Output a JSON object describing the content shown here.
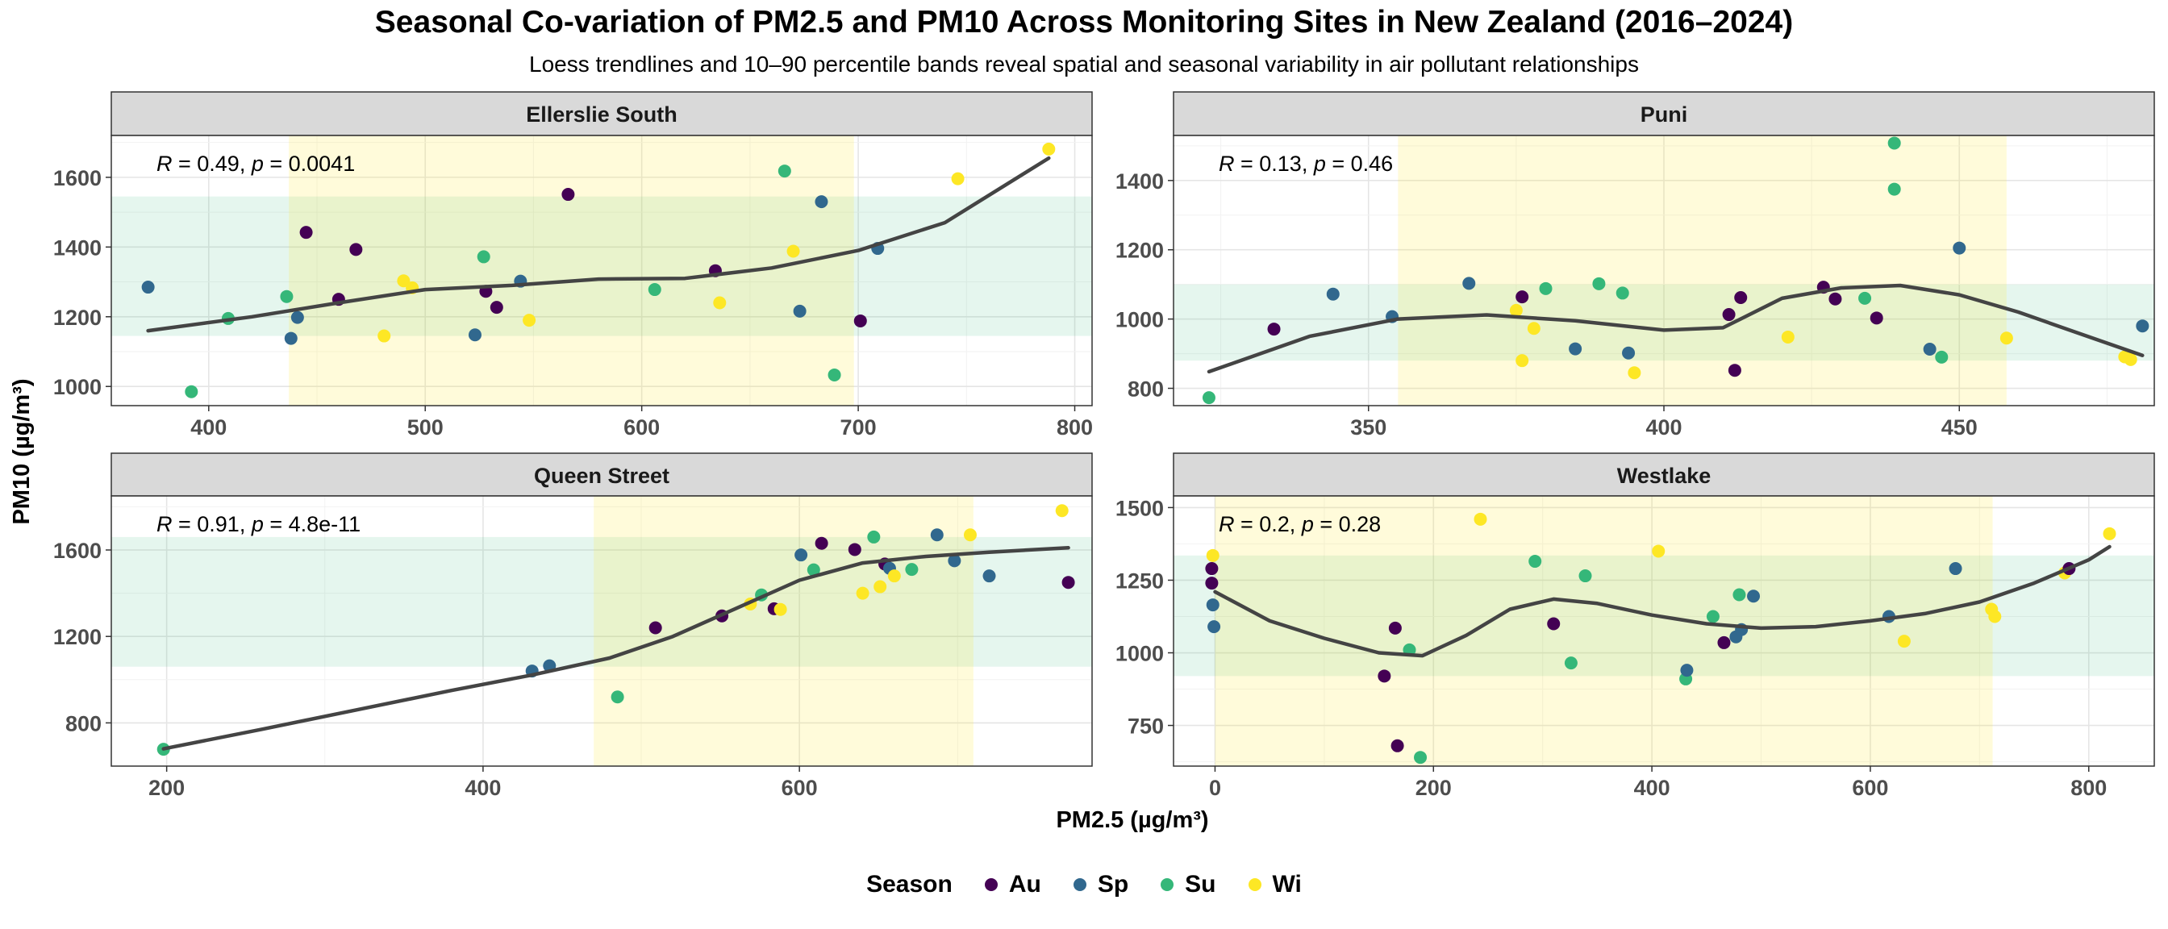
{
  "chart_data": {
    "type": "scatter",
    "title": "Seasonal Co-variation of  PM2.5  and  PM10  Across Monitoring Sites in New Zealand (2016–2024)",
    "subtitle": "Loess trendlines and 10–90 percentile bands reveal spatial and seasonal variability in air pollutant relationships",
    "xlabel": "PM2.5 (µg/m³)",
    "ylabel": "PM10 (µg/m³)",
    "legend": {
      "title": "Season",
      "position": "bottom",
      "entries": [
        {
          "name": "Au",
          "color": "#440154"
        },
        {
          "name": "Sp",
          "color": "#31688E"
        },
        {
          "name": "Su",
          "color": "#35B779"
        },
        {
          "name": "Wi",
          "color": "#FDE725"
        }
      ]
    },
    "band_colors": {
      "x_band": "#FDE725",
      "y_band": "#35B779",
      "trend": "#444444"
    },
    "panels": [
      {
        "site": "Ellerslie South",
        "stats": {
          "R": "0.49",
          "p": "0.0041"
        },
        "xlim": [
          355,
          808
        ],
        "ylim": [
          945,
          1720
        ],
        "xticks": [
          400,
          500,
          600,
          700,
          800
        ],
        "yticks": [
          1000,
          1200,
          1400,
          1600
        ],
        "x_band": [
          437,
          698
        ],
        "y_band": [
          1145,
          1545
        ],
        "points": [
          {
            "x": 372,
            "y": 1285,
            "s": "Sp"
          },
          {
            "x": 392,
            "y": 985,
            "s": "Su"
          },
          {
            "x": 409,
            "y": 1195,
            "s": "Su"
          },
          {
            "x": 436,
            "y": 1258,
            "s": "Su"
          },
          {
            "x": 438,
            "y": 1138,
            "s": "Sp"
          },
          {
            "x": 441,
            "y": 1198,
            "s": "Sp"
          },
          {
            "x": 445,
            "y": 1442,
            "s": "Au"
          },
          {
            "x": 460,
            "y": 1250,
            "s": "Au"
          },
          {
            "x": 468,
            "y": 1393,
            "s": "Au"
          },
          {
            "x": 481,
            "y": 1145,
            "s": "Wi"
          },
          {
            "x": 490,
            "y": 1303,
            "s": "Wi"
          },
          {
            "x": 494,
            "y": 1283,
            "s": "Wi"
          },
          {
            "x": 523,
            "y": 1148,
            "s": "Sp"
          },
          {
            "x": 527,
            "y": 1372,
            "s": "Su"
          },
          {
            "x": 528,
            "y": 1273,
            "s": "Au"
          },
          {
            "x": 533,
            "y": 1227,
            "s": "Au"
          },
          {
            "x": 544,
            "y": 1302,
            "s": "Sp"
          },
          {
            "x": 548,
            "y": 1190,
            "s": "Wi"
          },
          {
            "x": 566,
            "y": 1551,
            "s": "Au"
          },
          {
            "x": 606,
            "y": 1278,
            "s": "Su"
          },
          {
            "x": 634,
            "y": 1332,
            "s": "Au"
          },
          {
            "x": 636,
            "y": 1240,
            "s": "Wi"
          },
          {
            "x": 666,
            "y": 1618,
            "s": "Su"
          },
          {
            "x": 670,
            "y": 1388,
            "s": "Wi"
          },
          {
            "x": 673,
            "y": 1216,
            "s": "Sp"
          },
          {
            "x": 683,
            "y": 1530,
            "s": "Sp"
          },
          {
            "x": 689,
            "y": 1033,
            "s": "Su"
          },
          {
            "x": 701,
            "y": 1188,
            "s": "Au"
          },
          {
            "x": 709,
            "y": 1396,
            "s": "Sp"
          },
          {
            "x": 746,
            "y": 1596,
            "s": "Wi"
          },
          {
            "x": 788,
            "y": 1681,
            "s": "Wi"
          }
        ],
        "trend": [
          [
            372,
            1160
          ],
          [
            420,
            1200
          ],
          [
            460,
            1240
          ],
          [
            500,
            1278
          ],
          [
            540,
            1290
          ],
          [
            580,
            1308
          ],
          [
            620,
            1310
          ],
          [
            660,
            1340
          ],
          [
            700,
            1390
          ],
          [
            740,
            1470
          ],
          [
            788,
            1655
          ]
        ]
      },
      {
        "site": "Puni",
        "stats": {
          "R": "0.13",
          "p": "0.46"
        },
        "xlim": [
          317,
          483
        ],
        "ylim": [
          750,
          1530
        ],
        "xticks": [
          350,
          400,
          450
        ],
        "yticks": [
          800,
          1000,
          1200,
          1400
        ],
        "x_band": [
          355,
          458
        ],
        "y_band": [
          880,
          1100
        ],
        "points": [
          {
            "x": 323,
            "y": 773,
            "s": "Su"
          },
          {
            "x": 334,
            "y": 971,
            "s": "Au"
          },
          {
            "x": 344,
            "y": 1072,
            "s": "Sp"
          },
          {
            "x": 354,
            "y": 1007,
            "s": "Sp"
          },
          {
            "x": 367,
            "y": 1103,
            "s": "Sp"
          },
          {
            "x": 375,
            "y": 1025,
            "s": "Wi"
          },
          {
            "x": 376,
            "y": 880,
            "s": "Wi"
          },
          {
            "x": 376,
            "y": 1064,
            "s": "Au"
          },
          {
            "x": 378,
            "y": 973,
            "s": "Wi"
          },
          {
            "x": 380,
            "y": 1088,
            "s": "Su"
          },
          {
            "x": 385,
            "y": 914,
            "s": "Sp"
          },
          {
            "x": 389,
            "y": 1102,
            "s": "Su"
          },
          {
            "x": 393,
            "y": 1075,
            "s": "Su"
          },
          {
            "x": 394,
            "y": 902,
            "s": "Sp"
          },
          {
            "x": 395,
            "y": 845,
            "s": "Wi"
          },
          {
            "x": 411,
            "y": 1013,
            "s": "Au"
          },
          {
            "x": 412,
            "y": 852,
            "s": "Au"
          },
          {
            "x": 413,
            "y": 1062,
            "s": "Au"
          },
          {
            "x": 421,
            "y": 948,
            "s": "Wi"
          },
          {
            "x": 427,
            "y": 1092,
            "s": "Au"
          },
          {
            "x": 429,
            "y": 1058,
            "s": "Au"
          },
          {
            "x": 434,
            "y": 1060,
            "s": "Su"
          },
          {
            "x": 436,
            "y": 1003,
            "s": "Au"
          },
          {
            "x": 439,
            "y": 1508,
            "s": "Su"
          },
          {
            "x": 439,
            "y": 1375,
            "s": "Su"
          },
          {
            "x": 445,
            "y": 913,
            "s": "Sp"
          },
          {
            "x": 447,
            "y": 890,
            "s": "Su"
          },
          {
            "x": 450,
            "y": 1205,
            "s": "Sp"
          },
          {
            "x": 458,
            "y": 945,
            "s": "Wi"
          },
          {
            "x": 478,
            "y": 891,
            "s": "Wi"
          },
          {
            "x": 479,
            "y": 883,
            "s": "Wi"
          },
          {
            "x": 481,
            "y": 980,
            "s": "Sp"
          }
        ],
        "trend": [
          [
            323,
            848
          ],
          [
            340,
            950
          ],
          [
            355,
            1000
          ],
          [
            370,
            1012
          ],
          [
            385,
            995
          ],
          [
            400,
            968
          ],
          [
            410,
            975
          ],
          [
            420,
            1060
          ],
          [
            430,
            1090
          ],
          [
            440,
            1097
          ],
          [
            450,
            1070
          ],
          [
            460,
            1020
          ],
          [
            470,
            960
          ],
          [
            481,
            895
          ]
        ]
      },
      {
        "site": "Queen Street",
        "stats": {
          "R": "0.91",
          "p": "4.8e-11"
        },
        "xlim": [
          165,
          785
        ],
        "ylim": [
          600,
          1850
        ],
        "xticks": [
          200,
          400,
          600
        ],
        "yticks": [
          800,
          1200,
          1600
        ],
        "x_band": [
          470,
          710
        ],
        "y_band": [
          1060,
          1660
        ],
        "points": [
          {
            "x": 198,
            "y": 678,
            "s": "Su"
          },
          {
            "x": 431,
            "y": 1040,
            "s": "Sp"
          },
          {
            "x": 442,
            "y": 1064,
            "s": "Sp"
          },
          {
            "x": 485,
            "y": 920,
            "s": "Su"
          },
          {
            "x": 509,
            "y": 1240,
            "s": "Au"
          },
          {
            "x": 551,
            "y": 1295,
            "s": "Au"
          },
          {
            "x": 569,
            "y": 1350,
            "s": "Wi"
          },
          {
            "x": 576,
            "y": 1392,
            "s": "Su"
          },
          {
            "x": 584,
            "y": 1328,
            "s": "Au"
          },
          {
            "x": 588,
            "y": 1325,
            "s": "Wi"
          },
          {
            "x": 601,
            "y": 1577,
            "s": "Sp"
          },
          {
            "x": 609,
            "y": 1508,
            "s": "Su"
          },
          {
            "x": 614,
            "y": 1631,
            "s": "Au"
          },
          {
            "x": 635,
            "y": 1602,
            "s": "Au"
          },
          {
            "x": 640,
            "y": 1400,
            "s": "Wi"
          },
          {
            "x": 647,
            "y": 1660,
            "s": "Su"
          },
          {
            "x": 651,
            "y": 1430,
            "s": "Wi"
          },
          {
            "x": 654,
            "y": 1535,
            "s": "Au"
          },
          {
            "x": 657,
            "y": 1515,
            "s": "Sp"
          },
          {
            "x": 660,
            "y": 1480,
            "s": "Wi"
          },
          {
            "x": 671,
            "y": 1510,
            "s": "Su"
          },
          {
            "x": 687,
            "y": 1670,
            "s": "Sp"
          },
          {
            "x": 698,
            "y": 1550,
            "s": "Sp"
          },
          {
            "x": 708,
            "y": 1670,
            "s": "Wi"
          },
          {
            "x": 720,
            "y": 1480,
            "s": "Sp"
          },
          {
            "x": 766,
            "y": 1782,
            "s": "Wi"
          },
          {
            "x": 770,
            "y": 1450,
            "s": "Au"
          }
        ],
        "trend": [
          [
            198,
            680
          ],
          [
            260,
            770
          ],
          [
            320,
            860
          ],
          [
            380,
            950
          ],
          [
            430,
            1020
          ],
          [
            480,
            1100
          ],
          [
            520,
            1200
          ],
          [
            560,
            1330
          ],
          [
            600,
            1460
          ],
          [
            640,
            1540
          ],
          [
            680,
            1570
          ],
          [
            720,
            1590
          ],
          [
            770,
            1610
          ]
        ]
      },
      {
        "site": "Westlake",
        "stats": {
          "R": "0.2",
          "p": "0.28"
        },
        "xlim": [
          -38,
          860
        ],
        "ylim": [
          610,
          1540
        ],
        "xticks": [
          0,
          200,
          400,
          600,
          800
        ],
        "yticks": [
          750,
          1000,
          1250,
          1500
        ],
        "x_band": [
          0,
          712
        ],
        "y_band": [
          920,
          1335
        ],
        "points": [
          {
            "x": -3,
            "y": 1290,
            "s": "Au"
          },
          {
            "x": -3,
            "y": 1240,
            "s": "Au"
          },
          {
            "x": -2,
            "y": 1335,
            "s": "Wi"
          },
          {
            "x": -2,
            "y": 1165,
            "s": "Sp"
          },
          {
            "x": -1,
            "y": 1090,
            "s": "Sp"
          },
          {
            "x": 155,
            "y": 920,
            "s": "Au"
          },
          {
            "x": 165,
            "y": 1085,
            "s": "Au"
          },
          {
            "x": 167,
            "y": 680,
            "s": "Au"
          },
          {
            "x": 178,
            "y": 1010,
            "s": "Su"
          },
          {
            "x": 188,
            "y": 640,
            "s": "Su"
          },
          {
            "x": 243,
            "y": 1460,
            "s": "Wi"
          },
          {
            "x": 293,
            "y": 1315,
            "s": "Su"
          },
          {
            "x": 310,
            "y": 1100,
            "s": "Au"
          },
          {
            "x": 326,
            "y": 965,
            "s": "Su"
          },
          {
            "x": 339,
            "y": 1265,
            "s": "Su"
          },
          {
            "x": 406,
            "y": 1350,
            "s": "Wi"
          },
          {
            "x": 431,
            "y": 910,
            "s": "Su"
          },
          {
            "x": 432,
            "y": 940,
            "s": "Sp"
          },
          {
            "x": 456,
            "y": 1125,
            "s": "Su"
          },
          {
            "x": 466,
            "y": 1035,
            "s": "Au"
          },
          {
            "x": 477,
            "y": 1055,
            "s": "Sp"
          },
          {
            "x": 480,
            "y": 1200,
            "s": "Su"
          },
          {
            "x": 482,
            "y": 1080,
            "s": "Sp"
          },
          {
            "x": 493,
            "y": 1195,
            "s": "Sp"
          },
          {
            "x": 617,
            "y": 1125,
            "s": "Sp"
          },
          {
            "x": 631,
            "y": 1040,
            "s": "Wi"
          },
          {
            "x": 678,
            "y": 1290,
            "s": "Sp"
          },
          {
            "x": 711,
            "y": 1150,
            "s": "Wi"
          },
          {
            "x": 714,
            "y": 1125,
            "s": "Wi"
          },
          {
            "x": 778,
            "y": 1275,
            "s": "Wi"
          },
          {
            "x": 782,
            "y": 1290,
            "s": "Au"
          },
          {
            "x": 819,
            "y": 1410,
            "s": "Wi"
          }
        ],
        "trend": [
          [
            0,
            1210
          ],
          [
            50,
            1110
          ],
          [
            100,
            1050
          ],
          [
            150,
            1000
          ],
          [
            190,
            990
          ],
          [
            230,
            1060
          ],
          [
            270,
            1150
          ],
          [
            310,
            1185
          ],
          [
            350,
            1170
          ],
          [
            400,
            1130
          ],
          [
            450,
            1100
          ],
          [
            500,
            1085
          ],
          [
            550,
            1090
          ],
          [
            600,
            1110
          ],
          [
            650,
            1135
          ],
          [
            700,
            1175
          ],
          [
            750,
            1240
          ],
          [
            800,
            1320
          ],
          [
            819,
            1365
          ]
        ]
      }
    ]
  }
}
